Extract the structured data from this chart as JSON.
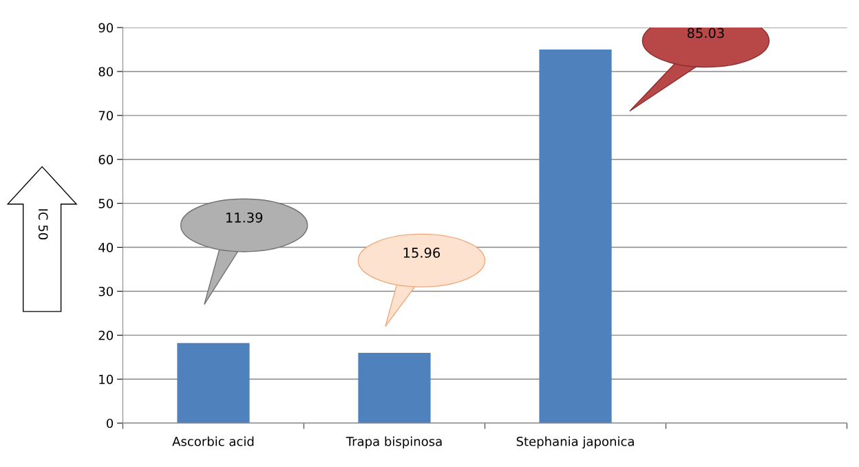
{
  "chart_data": {
    "type": "bar",
    "ylabel": "IC 50",
    "categories": [
      "Ascorbic acid",
      "Trapa bispinosa",
      "Stephania japonica",
      null
    ],
    "values": [
      18.2,
      16,
      85,
      null
    ],
    "annotations": [
      "11.39",
      "15.96",
      "85.03"
    ],
    "color": "#4f81bd",
    "ylim": [
      0,
      90
    ],
    "yticks": [
      0,
      10,
      20,
      30,
      40,
      50,
      60,
      70,
      80,
      90
    ],
    "grid": "y"
  }
}
